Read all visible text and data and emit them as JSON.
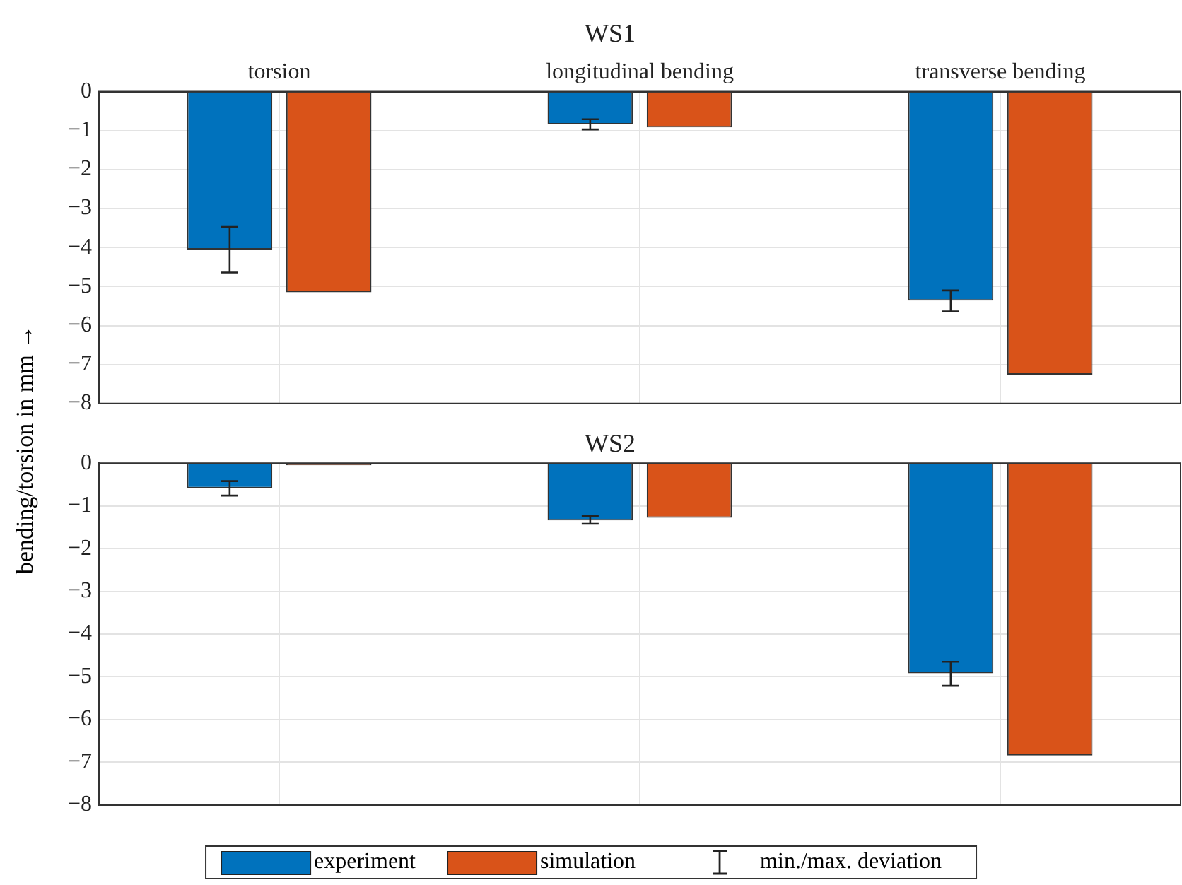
{
  "chart_data": [
    {
      "type": "bar",
      "title": "WS1",
      "ylabel": "bending/torsion in mm →",
      "categories": [
        "torsion",
        "longitudinal bending",
        "transverse bending"
      ],
      "series": [
        {
          "color": "#0072bd",
          "values": [
            -4.05,
            -0.84,
            -5.36
          ],
          "errors": [
            [
              -4.64,
              -3.47
            ],
            [
              -0.97,
              -0.71
            ],
            [
              -5.64,
              -5.1
            ]
          ]
        },
        {
          "color": "#d95319",
          "values": [
            -5.15,
            -0.92,
            -7.26
          ]
        }
      ],
      "ylim": [
        -8,
        0
      ],
      "yticks": [
        -8,
        -7,
        -6,
        -5,
        -4,
        -3,
        -2,
        -1,
        0
      ],
      "grid": true,
      "legend": false
    },
    {
      "type": "bar",
      "title": "WS2",
      "categories": [
        null,
        null,
        null
      ],
      "series": [
        {
          "name": "experiment",
          "color": "#0072bd",
          "values": [
            -0.59,
            -1.34,
            -4.92
          ],
          "errors": [
            [
              -0.76,
              -0.42
            ],
            [
              -1.42,
              -1.24
            ],
            [
              -5.21,
              -4.65
            ]
          ]
        },
        {
          "name": "simulation",
          "color": "#d95319",
          "values": [
            -0.05,
            -1.28,
            -6.84
          ]
        }
      ],
      "ylim": [
        -8,
        0
      ],
      "yticks": [
        -8,
        -7,
        -6,
        -5,
        -4,
        -3,
        -2,
        -1,
        0
      ],
      "grid": true,
      "legend": "bottom",
      "tick_labels": "y",
      "annotations": [
        "min./max. deviation"
      ]
    }
  ]
}
